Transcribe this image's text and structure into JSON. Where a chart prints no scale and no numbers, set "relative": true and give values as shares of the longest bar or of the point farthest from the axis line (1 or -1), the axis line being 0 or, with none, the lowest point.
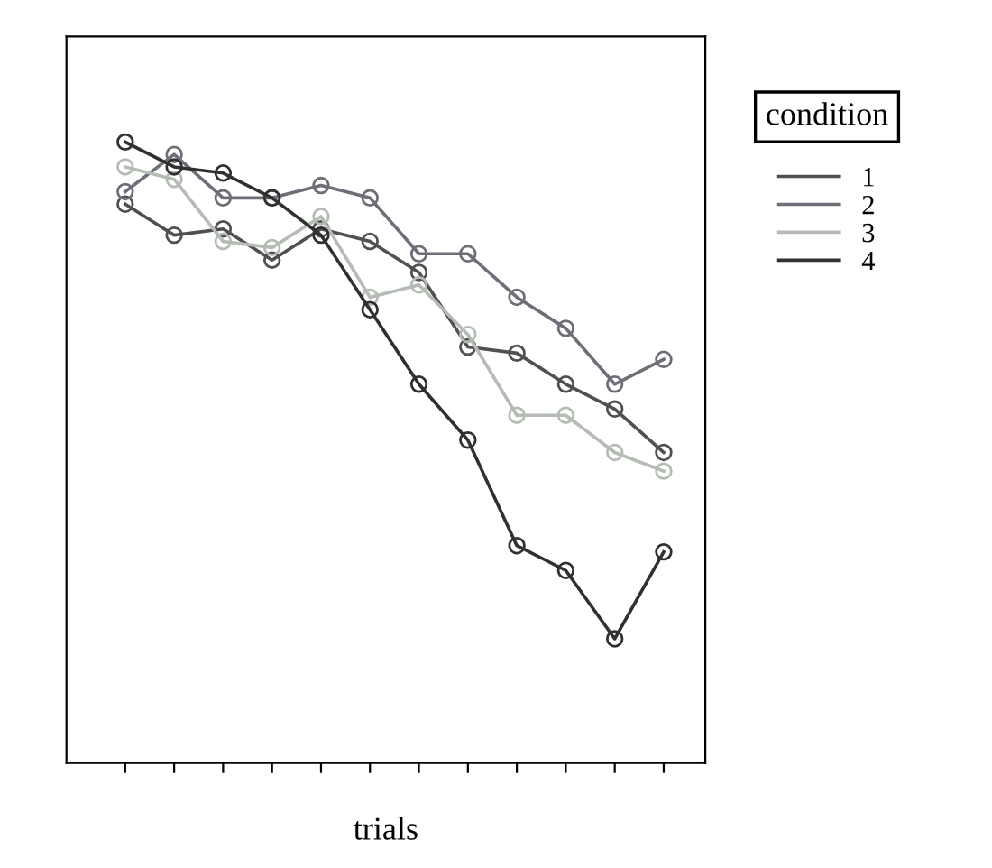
{
  "chart_data": {
    "type": "line",
    "relative": true,
    "xlabel": "trials",
    "legend_title": "condition",
    "legend": "top right",
    "marker": "circle",
    "line_style": "solid",
    "grid": false,
    "categories": [
      null,
      null,
      null,
      null,
      null,
      null,
      null,
      null,
      null,
      null,
      null,
      null
    ],
    "series": [
      {
        "name": "1",
        "color": "#505050",
        "values": [
          0.9,
          0.85,
          0.86,
          0.81,
          0.86,
          0.84,
          0.79,
          0.67,
          0.66,
          0.61,
          0.57,
          0.5
        ]
      },
      {
        "name": "2",
        "color": "#6e6e78",
        "values": [
          0.92,
          0.98,
          0.91,
          0.91,
          0.93,
          0.91,
          0.82,
          0.82,
          0.75,
          0.7,
          0.61,
          0.65
        ]
      },
      {
        "name": "3",
        "color": "#b4bcb4",
        "values": [
          0.96,
          0.94,
          0.84,
          0.83,
          0.88,
          0.75,
          0.77,
          0.69,
          0.56,
          0.56,
          0.5,
          0.47
        ]
      },
      {
        "name": "4",
        "color": "#303030",
        "values": [
          1.0,
          0.96,
          0.95,
          0.91,
          0.85,
          0.73,
          0.61,
          0.52,
          0.35,
          0.31,
          0.2,
          0.34
        ]
      }
    ]
  }
}
